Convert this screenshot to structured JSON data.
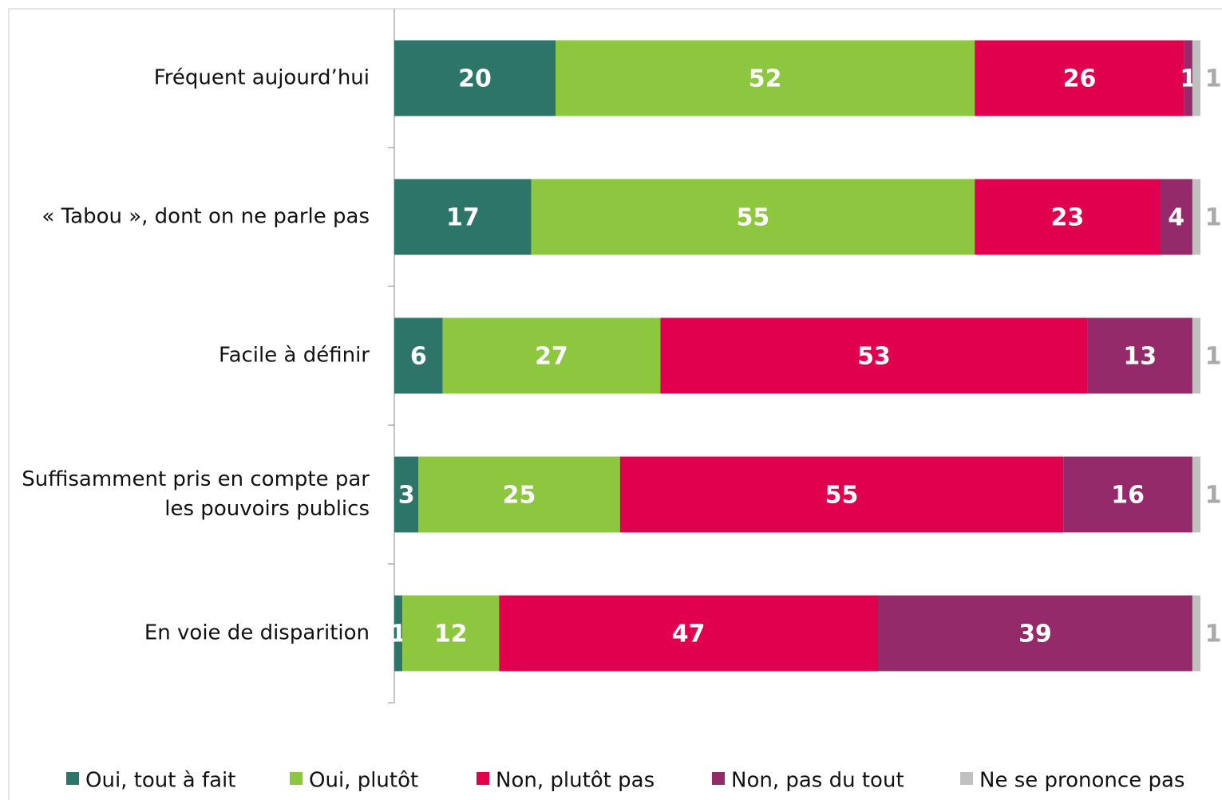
{
  "chart_data": {
    "type": "stacked-bar-horizontal",
    "categories": [
      "Fréquent aujourd’hui",
      "« Tabou », dont on ne parle pas",
      "Facile à définir",
      "Suffisamment pris en compte par les pouvoirs publics",
      "En voie de disparition"
    ],
    "series": [
      {
        "name": "Oui, tout à fait",
        "color": "#2e7569",
        "values": [
          20,
          17,
          6,
          3,
          1
        ]
      },
      {
        "name": "Oui, plutôt",
        "color": "#8dc63f",
        "values": [
          52,
          55,
          27,
          25,
          12
        ]
      },
      {
        "name": "Non, plutôt pas",
        "color": "#e0004d",
        "values": [
          26,
          23,
          53,
          55,
          47
        ]
      },
      {
        "name": "Non, pas du tout",
        "color": "#952a6b",
        "values": [
          1,
          4,
          13,
          16,
          39
        ]
      },
      {
        "name": "Ne se prononce pas",
        "color": "#c0c0c0",
        "values": [
          1,
          1,
          1,
          1,
          1
        ]
      }
    ],
    "xlim": [
      0,
      100
    ]
  }
}
